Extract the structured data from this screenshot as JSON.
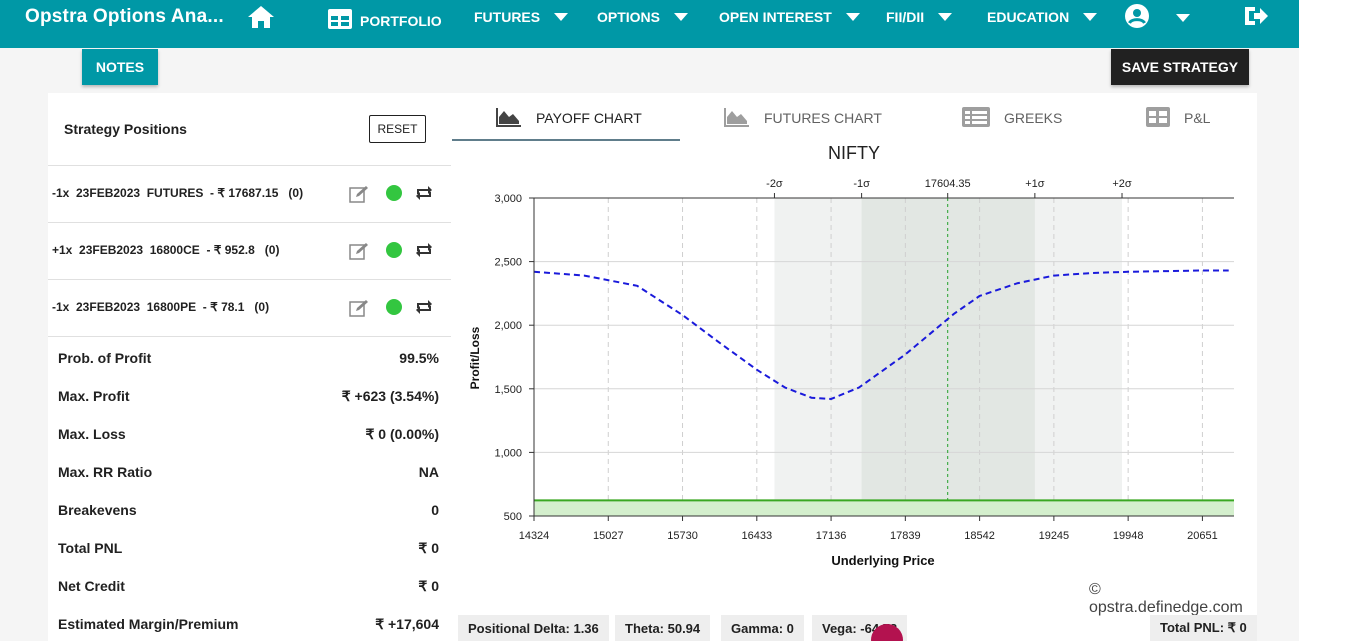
{
  "nav": {
    "brand": "Opstra Options Ana...",
    "items": [
      {
        "label": "PORTFOLIO"
      },
      {
        "label": "FUTURES"
      },
      {
        "label": "OPTIONS"
      },
      {
        "label": "OPEN INTEREST"
      },
      {
        "label": "FII/DII"
      },
      {
        "label": "EDUCATION"
      }
    ]
  },
  "buttons": {
    "notes": "NOTES",
    "save": "SAVE STRATEGY",
    "reset": "RESET"
  },
  "positions": {
    "title": "Strategy Positions",
    "rows": [
      {
        "text": "-1x  23FEB2023  FUTURES  - ₹ 17687.15   (0)"
      },
      {
        "text": "+1x  23FEB2023  16800CE  - ₹ 952.8   (0)"
      },
      {
        "text": "-1x  23FEB2023  16800PE  - ₹ 78.1   (0)"
      }
    ]
  },
  "stats": [
    {
      "label": "Prob. of Profit",
      "value": "99.5%"
    },
    {
      "label": "Max. Profit",
      "value": "₹ +623 (3.54%)"
    },
    {
      "label": "Max. Loss",
      "value": "₹ 0 (0.00%)"
    },
    {
      "label": "Max. RR Ratio",
      "value": "NA"
    },
    {
      "label": "Breakevens",
      "value": "0"
    },
    {
      "label": "Total PNL",
      "value": "₹ 0"
    },
    {
      "label": "Net Credit",
      "value": "₹ 0"
    },
    {
      "label": "Estimated Margin/Premium",
      "value": "₹ +17,604"
    }
  ],
  "tabs": [
    {
      "label": "PAYOFF CHART",
      "icon": "area-chart-icon",
      "active": true
    },
    {
      "label": "FUTURES CHART",
      "icon": "area-chart-icon",
      "active": false
    },
    {
      "label": "GREEKS",
      "icon": "list-icon",
      "active": false
    },
    {
      "label": "P&L",
      "icon": "grid-icon",
      "active": false
    }
  ],
  "chart_data": {
    "type": "line",
    "title": "NIFTY",
    "xlabel": "Underlying Price",
    "ylabel": "Profit/Loss",
    "x_ticks": [
      "14324",
      "15027",
      "15730",
      "16433",
      "17136",
      "17839",
      "18542",
      "19245",
      "19948",
      "20651"
    ],
    "y_ticks": [
      "500",
      "1,000",
      "1,500",
      "2,000",
      "2,500",
      "3,000"
    ],
    "ylim": [
      500,
      3000
    ],
    "xlim": [
      14324,
      20950
    ],
    "top_labels": [
      {
        "text": "-2σ",
        "x": 16600
      },
      {
        "text": "-1σ",
        "x": 17425
      },
      {
        "text": "17604.35",
        "x": 18240
      },
      {
        "text": "+1σ",
        "x": 19065
      },
      {
        "text": "+2σ",
        "x": 19890
      }
    ],
    "sigma_bands": {
      "outer": [
        16600,
        19890
      ],
      "inner": [
        17425,
        19065
      ]
    },
    "spot": 18240,
    "series": [
      {
        "style": "dashed",
        "color": "#1a1adb",
        "x": [
          14324,
          14800,
          15300,
          15730,
          16100,
          16433,
          16700,
          16950,
          17136,
          17400,
          17839,
          18300,
          18542,
          18900,
          19245,
          19600,
          19948,
          20300,
          20651,
          20900
        ],
        "y": [
          2420,
          2390,
          2310,
          2080,
          1850,
          1650,
          1510,
          1430,
          1420,
          1510,
          1770,
          2090,
          2230,
          2330,
          2390,
          2410,
          2420,
          2425,
          2430,
          2430
        ]
      },
      {
        "style": "solid",
        "color": "#3aa822",
        "x": [
          14324,
          20950
        ],
        "y": [
          623,
          623
        ]
      }
    ]
  },
  "watermark": "© opstra.definedge.com",
  "chips": [
    {
      "text": "Positional Delta: 1.36"
    },
    {
      "text": "Theta: 50.94"
    },
    {
      "text": "Gamma: 0"
    },
    {
      "text": "Vega: -64.78"
    },
    {
      "text": "Total PNL: ₹ 0"
    }
  ],
  "colors": {
    "nav": "#0098a6",
    "profit_line": "#3aa822",
    "payoff_line": "#1a1adb",
    "status_dot": "#33c640"
  }
}
